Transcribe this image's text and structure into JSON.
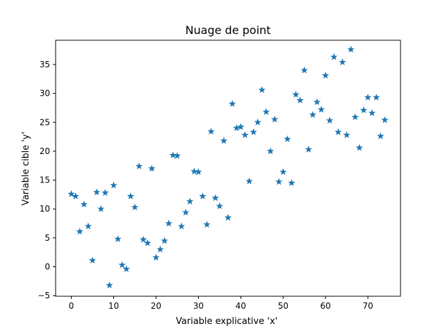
{
  "chart_data": {
    "type": "scatter",
    "title": "Nuage de point",
    "xlabel": "Variable explicative 'x'",
    "ylabel": "Variable cible 'y'",
    "xlim": [
      -3.7,
      77.7
    ],
    "ylim": [
      -5.1,
      39.2
    ],
    "xticks": [
      0,
      10,
      20,
      30,
      40,
      50,
      60,
      70
    ],
    "yticks": [
      -5,
      0,
      5,
      10,
      15,
      20,
      25,
      30,
      35
    ],
    "grid": false,
    "marker": "star",
    "color": "#1f77b4",
    "x": [
      0,
      1,
      2,
      3,
      4,
      5,
      6,
      7,
      8,
      9,
      10,
      11,
      12,
      13,
      14,
      15,
      16,
      17,
      18,
      19,
      20,
      21,
      22,
      23,
      24,
      25,
      26,
      27,
      28,
      29,
      30,
      31,
      32,
      33,
      34,
      35,
      36,
      37,
      38,
      39,
      40,
      41,
      42,
      43,
      44,
      45,
      46,
      47,
      48,
      49,
      50,
      51,
      52,
      53,
      54,
      55,
      56,
      57,
      58,
      59,
      60,
      61,
      62,
      63,
      64,
      65,
      66,
      67,
      68,
      69,
      70,
      71,
      72,
      73,
      74
    ],
    "y": [
      12.6,
      12.2,
      6.1,
      10.8,
      7.0,
      1.1,
      12.9,
      10.0,
      12.8,
      -3.2,
      14.1,
      4.8,
      0.3,
      -0.4,
      12.2,
      10.3,
      17.4,
      4.7,
      4.1,
      17.0,
      1.6,
      3.0,
      4.5,
      7.5,
      19.3,
      19.2,
      7.0,
      9.4,
      11.3,
      16.5,
      16.4,
      12.2,
      7.3,
      23.4,
      11.9,
      10.5,
      21.8,
      8.5,
      28.2,
      24.0,
      24.2,
      22.8,
      14.8,
      23.3,
      25.0,
      30.6,
      26.8,
      20.0,
      25.5,
      14.7,
      16.4,
      22.1,
      14.5,
      29.8,
      28.8,
      34.0,
      20.3,
      26.3,
      28.5,
      27.2,
      33.1,
      25.3,
      36.3,
      23.3,
      35.4,
      22.8,
      37.6,
      25.9,
      20.6,
      27.1,
      29.3,
      26.6,
      29.3,
      22.6,
      25.4
    ]
  }
}
